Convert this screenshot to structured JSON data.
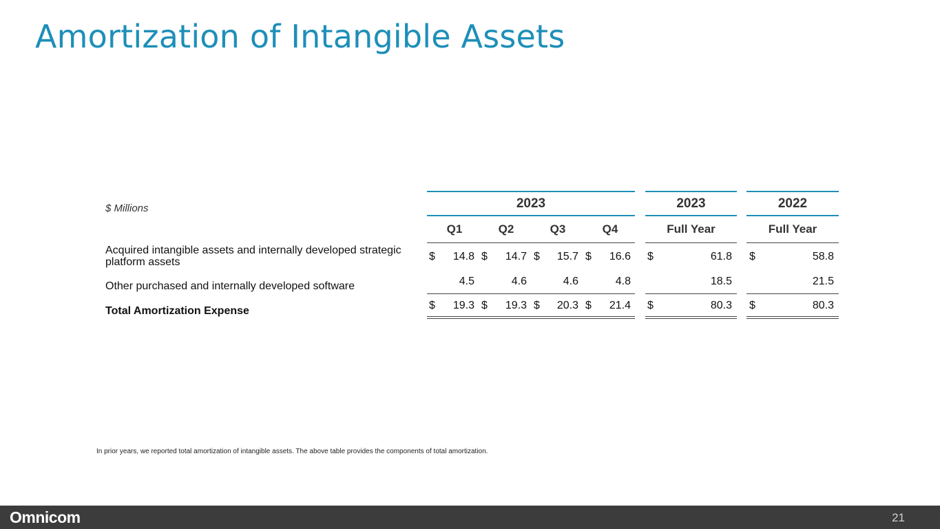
{
  "title": "Amortization of Intangible Assets",
  "units_label": "$ Millions",
  "header_groups": [
    {
      "year": "2023"
    },
    {
      "year": "2023"
    },
    {
      "year": "2022"
    }
  ],
  "column_headers": [
    "Q1",
    "Q2",
    "Q3",
    "Q4",
    "Full Year",
    "Full Year"
  ],
  "currency_symbol": "$",
  "rows": [
    {
      "label": "Acquired intangible assets and internally developed strategic platform assets",
      "values": [
        "14.8",
        "14.7",
        "15.7",
        "16.6",
        "61.8",
        "58.8"
      ]
    },
    {
      "label": "Other purchased and internally developed software",
      "values": [
        "4.5",
        "4.6",
        "4.6",
        "4.8",
        "18.5",
        "21.5"
      ]
    },
    {
      "label": "Total Amortization Expense",
      "values": [
        "19.3",
        "19.3",
        "20.3",
        "21.4",
        "80.3",
        "80.3"
      ]
    }
  ],
  "footnote": "In prior years, we reported total amortization of intangible assets. The above table provides the components of total amortization.",
  "footer": {
    "logo": "Omnicom",
    "page_number": "21"
  }
}
